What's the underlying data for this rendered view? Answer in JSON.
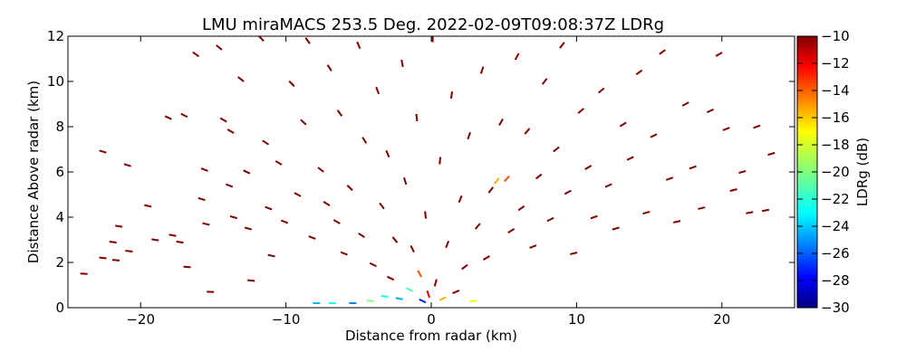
{
  "chart_data": {
    "type": "scatter",
    "title": "LMU miraMACS 253.5 Deg. 2022-02-09T09:08:37Z  LDRg",
    "xlabel": "Distance from radar (km)",
    "ylabel": "Distance Above radar  (km)",
    "xlim": [
      -25,
      25
    ],
    "ylim": [
      0,
      12
    ],
    "xticks": [
      -20,
      -10,
      0,
      10,
      20
    ],
    "yticks": [
      0,
      2,
      4,
      6,
      8,
      10,
      12
    ],
    "colorbar": {
      "label": "LDRg (dB)",
      "range": [
        -30,
        -10
      ],
      "ticks": [
        -10,
        -12,
        -14,
        -16,
        -18,
        -20,
        -22,
        -24,
        -26,
        -28,
        -30
      ],
      "colormap": "jet"
    },
    "series": [
      {
        "points": [
          [
            -23.9,
            1.5,
            -10
          ],
          [
            -22.6,
            6.9,
            -10
          ],
          [
            -22.6,
            2.2,
            -10
          ],
          [
            -21.9,
            2.9,
            -10
          ],
          [
            -21.7,
            2.1,
            -10
          ],
          [
            -21.5,
            3.6,
            -10
          ],
          [
            -20.9,
            6.3,
            -10
          ],
          [
            -20.8,
            2.5,
            -10
          ],
          [
            -19.5,
            4.5,
            -10
          ],
          [
            -19.0,
            3.0,
            -10
          ],
          [
            -18.1,
            8.4,
            -10
          ],
          [
            -17.8,
            3.2,
            -10
          ],
          [
            -17.3,
            2.9,
            -10
          ],
          [
            -17.0,
            8.5,
            -10
          ],
          [
            -16.8,
            1.8,
            -10
          ],
          [
            -16.2,
            11.2,
            -10
          ],
          [
            -15.8,
            4.8,
            -10
          ],
          [
            -15.6,
            6.1,
            -10
          ],
          [
            -15.5,
            3.7,
            -10
          ],
          [
            -15.2,
            0.7,
            -10
          ],
          [
            -14.6,
            11.5,
            -10
          ],
          [
            -14.3,
            8.3,
            -10
          ],
          [
            -13.9,
            5.4,
            -10
          ],
          [
            -13.8,
            7.8,
            -10
          ],
          [
            -13.6,
            4.0,
            -10
          ],
          [
            -13.1,
            10.1,
            -10
          ],
          [
            -12.7,
            6.0,
            -10
          ],
          [
            -12.6,
            3.5,
            -10
          ],
          [
            -12.4,
            1.2,
            -10
          ],
          [
            -11.7,
            11.9,
            -10
          ],
          [
            -11.4,
            7.3,
            -10
          ],
          [
            -11.2,
            4.4,
            -10
          ],
          [
            -11.0,
            2.3,
            -10
          ],
          [
            -10.5,
            6.4,
            -10
          ],
          [
            -10.1,
            3.8,
            -10
          ],
          [
            -9.6,
            9.9,
            -10
          ],
          [
            -9.2,
            5.0,
            -10
          ],
          [
            -8.8,
            8.2,
            -10
          ],
          [
            -8.5,
            11.8,
            -10
          ],
          [
            -8.2,
            3.1,
            -10
          ],
          [
            -7.9,
            0.2,
            -24
          ],
          [
            -7.6,
            6.1,
            -10
          ],
          [
            -7.2,
            4.6,
            -10
          ],
          [
            -7.0,
            10.6,
            -10
          ],
          [
            -6.8,
            0.2,
            -22
          ],
          [
            -6.5,
            3.8,
            -10
          ],
          [
            -6.3,
            8.6,
            -10
          ],
          [
            -6.0,
            2.4,
            -10
          ],
          [
            -5.6,
            5.3,
            -10
          ],
          [
            -5.4,
            0.2,
            -25
          ],
          [
            -5.0,
            11.6,
            -10
          ],
          [
            -4.8,
            3.2,
            -10
          ],
          [
            -4.6,
            7.4,
            -10
          ],
          [
            -4.2,
            0.3,
            -20
          ],
          [
            -4.0,
            1.9,
            -10
          ],
          [
            -3.7,
            9.6,
            -10
          ],
          [
            -3.4,
            4.5,
            -10
          ],
          [
            -3.2,
            0.5,
            -22
          ],
          [
            -3.0,
            6.8,
            -10
          ],
          [
            -2.8,
            1.3,
            -10
          ],
          [
            -2.5,
            3.0,
            -10
          ],
          [
            -2.2,
            0.4,
            -24
          ],
          [
            -2.0,
            10.8,
            -10
          ],
          [
            -1.8,
            5.6,
            -10
          ],
          [
            -1.5,
            0.8,
            -21
          ],
          [
            -1.3,
            2.6,
            -10
          ],
          [
            -1.0,
            8.4,
            -10
          ],
          [
            -0.8,
            1.5,
            -14
          ],
          [
            -0.6,
            0.3,
            -27
          ],
          [
            -0.4,
            4.1,
            -10
          ],
          [
            -0.2,
            0.6,
            -12
          ],
          [
            0.1,
            11.9,
            -10
          ],
          [
            0.3,
            1.1,
            -10
          ],
          [
            0.6,
            6.5,
            -10
          ],
          [
            0.8,
            0.4,
            -16
          ],
          [
            1.1,
            2.8,
            -10
          ],
          [
            1.4,
            9.4,
            -10
          ],
          [
            1.7,
            0.7,
            -10
          ],
          [
            2.0,
            4.8,
            -10
          ],
          [
            2.3,
            1.8,
            -10
          ],
          [
            2.6,
            7.6,
            -10
          ],
          [
            2.9,
            0.3,
            -18
          ],
          [
            3.2,
            3.6,
            -10
          ],
          [
            3.5,
            10.5,
            -10
          ],
          [
            3.8,
            2.2,
            -10
          ],
          [
            4.1,
            5.2,
            -10
          ],
          [
            4.5,
            5.6,
            -16
          ],
          [
            4.8,
            8.2,
            -10
          ],
          [
            5.2,
            5.7,
            -14
          ],
          [
            5.5,
            3.4,
            -10
          ],
          [
            5.9,
            11.1,
            -10
          ],
          [
            6.2,
            4.4,
            -10
          ],
          [
            6.6,
            7.8,
            -10
          ],
          [
            7.0,
            2.7,
            -10
          ],
          [
            7.4,
            5.8,
            -10
          ],
          [
            7.8,
            10.0,
            -10
          ],
          [
            8.2,
            3.9,
            -10
          ],
          [
            8.6,
            7.0,
            -10
          ],
          [
            9.0,
            11.6,
            -10
          ],
          [
            9.4,
            5.1,
            -10
          ],
          [
            9.8,
            2.4,
            -10
          ],
          [
            10.3,
            8.7,
            -10
          ],
          [
            10.8,
            6.2,
            -10
          ],
          [
            11.2,
            4.0,
            -10
          ],
          [
            11.7,
            9.6,
            -10
          ],
          [
            12.2,
            5.4,
            -10
          ],
          [
            12.7,
            3.5,
            -10
          ],
          [
            13.2,
            8.1,
            -10
          ],
          [
            13.7,
            6.6,
            -10
          ],
          [
            14.3,
            10.4,
            -10
          ],
          [
            14.8,
            4.2,
            -10
          ],
          [
            15.3,
            7.6,
            -10
          ],
          [
            15.9,
            11.3,
            -10
          ],
          [
            16.4,
            5.7,
            -10
          ],
          [
            16.9,
            3.8,
            -10
          ],
          [
            17.5,
            9.0,
            -10
          ],
          [
            18.0,
            6.2,
            -10
          ],
          [
            18.6,
            4.4,
            -10
          ],
          [
            19.2,
            8.7,
            -10
          ],
          [
            19.8,
            11.2,
            -10
          ],
          [
            20.3,
            7.9,
            -10
          ],
          [
            20.8,
            5.2,
            -10
          ],
          [
            21.4,
            6.0,
            -10
          ],
          [
            21.9,
            4.2,
            -10
          ],
          [
            22.4,
            8.0,
            -10
          ],
          [
            23.0,
            4.3,
            -10
          ],
          [
            23.4,
            6.8,
            -10
          ]
        ]
      }
    ]
  }
}
